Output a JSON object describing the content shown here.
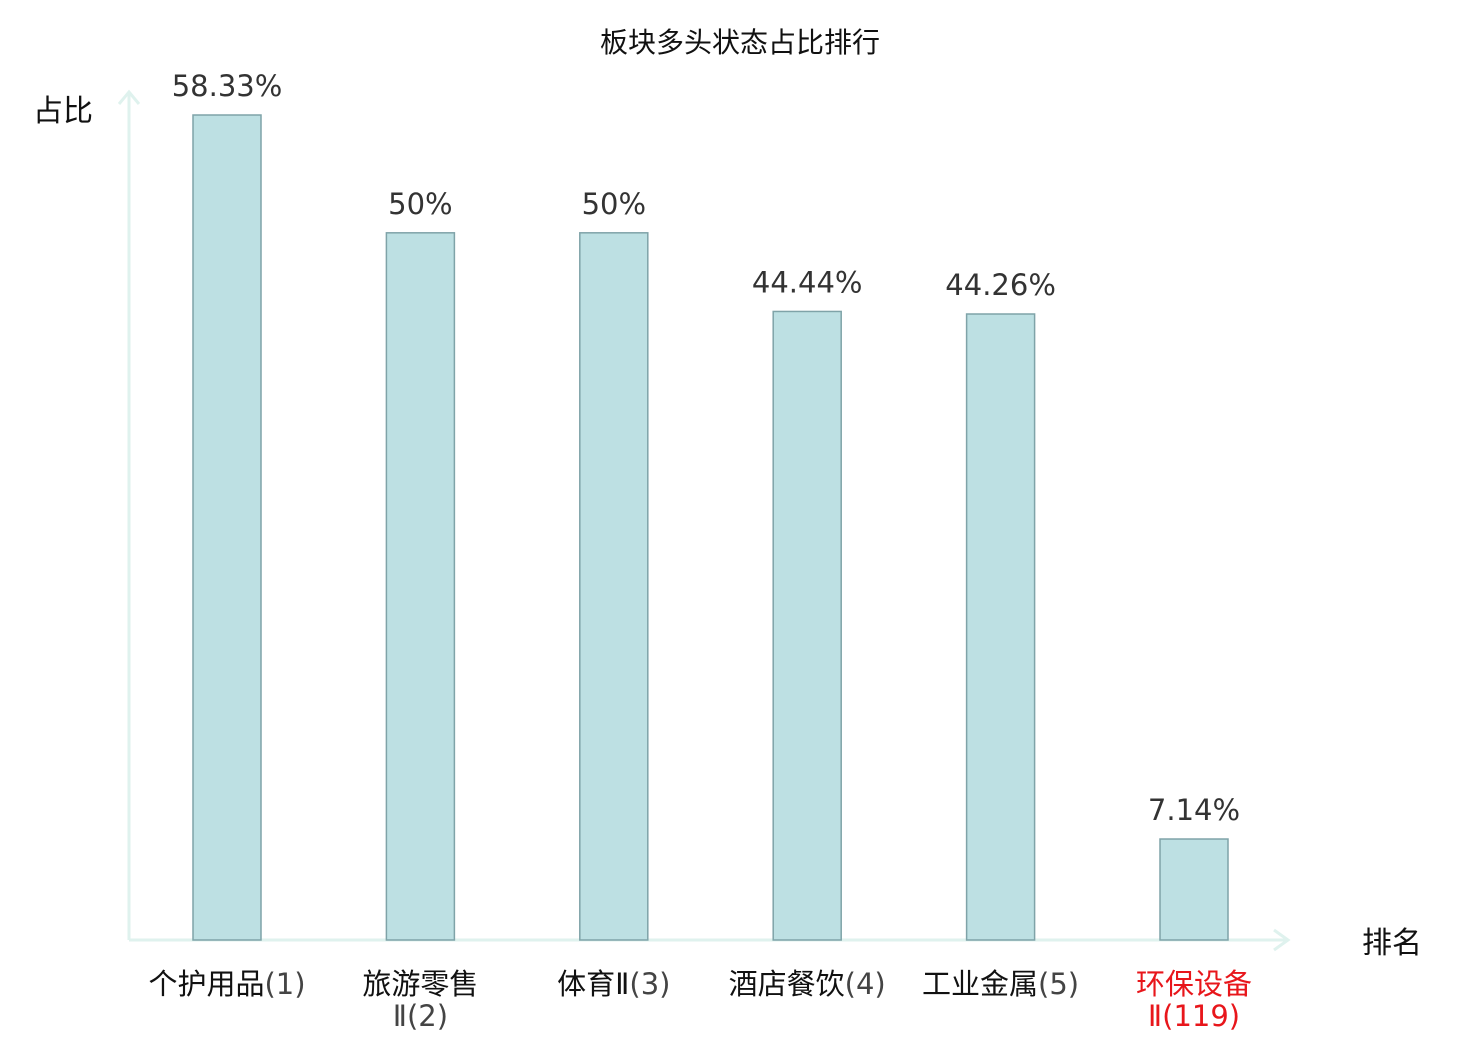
{
  "chart_data": {
    "type": "bar",
    "title": "板块多头状态占比排行",
    "ylabel": "占比",
    "xlabel": "排名",
    "ylim": [
      0,
      62
    ],
    "grid": false,
    "categories": [
      {
        "name": "个护用品",
        "rank": "(1)"
      },
      {
        "name": "旅游零售",
        "rank": "Ⅱ(2)"
      },
      {
        "name": "体育Ⅱ",
        "rank": "(3)"
      },
      {
        "name": "酒店餐饮",
        "rank": "(4)"
      },
      {
        "name": "工业金属",
        "rank": "(5)"
      },
      {
        "name": "环保设备",
        "rank": "Ⅱ(119)",
        "highlight": true
      }
    ],
    "values": [
      58.33,
      50,
      50,
      44.44,
      44.26,
      7.14
    ],
    "value_labels": [
      "58.33%",
      "50%",
      "50%",
      "44.44%",
      "44.26%",
      "7.14%"
    ]
  },
  "colors": {
    "bar_fill": "#bde0e3",
    "bar_stroke": "#7fa3a8",
    "axis": "#dff2ee",
    "highlight": "#e8161b",
    "text": "#111111",
    "sub_text": "#444444"
  }
}
